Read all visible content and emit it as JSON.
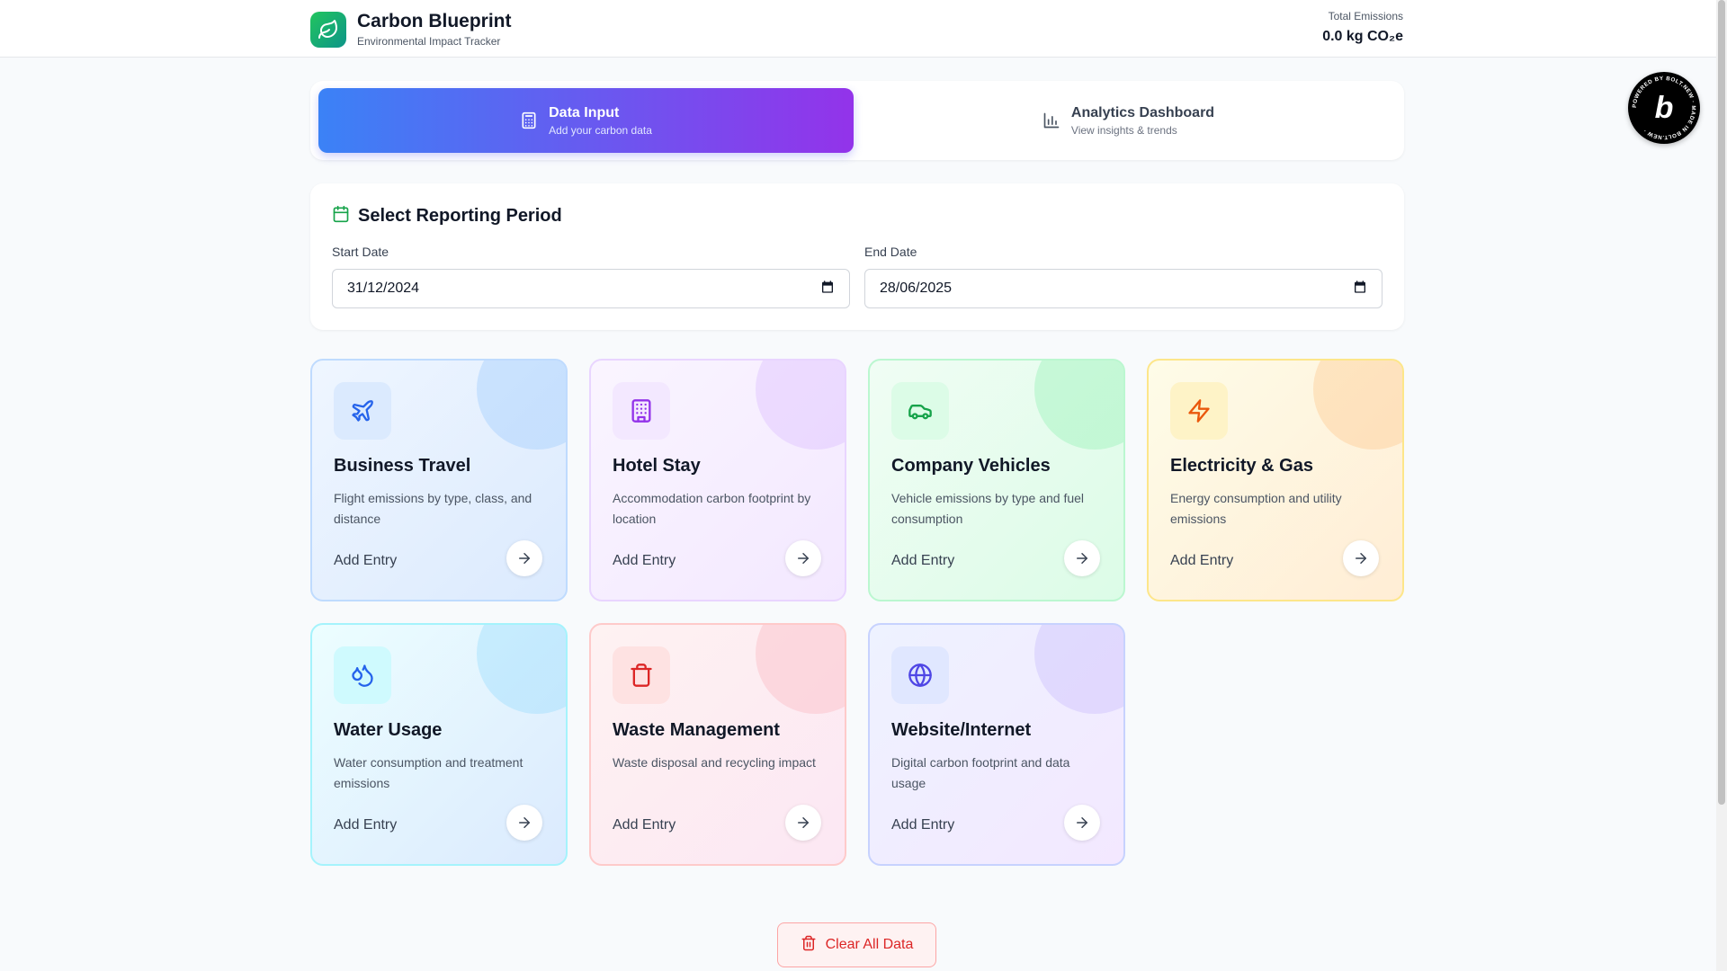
{
  "header": {
    "title": "Carbon Blueprint",
    "subtitle": "Environmental Impact Tracker",
    "total_label": "Total Emissions",
    "total_value": "0.0 kg CO₂e"
  },
  "tabs": [
    {
      "title": "Data Input",
      "subtitle": "Add your carbon data",
      "icon": "calculator-icon",
      "active": true
    },
    {
      "title": "Analytics Dashboard",
      "subtitle": "View insights & trends",
      "icon": "bar-chart-icon",
      "active": false
    }
  ],
  "period": {
    "title": "Select Reporting Period",
    "start_label": "Start Date",
    "start_value": "31/12/2024",
    "end_label": "End Date",
    "end_value": "28/06/2025"
  },
  "cards": [
    {
      "title": "Business Travel",
      "description": "Flight emissions by type, class, and distance",
      "action": "Add Entry",
      "icon": "plane-icon"
    },
    {
      "title": "Hotel Stay",
      "description": "Accommodation carbon footprint by location",
      "action": "Add Entry",
      "icon": "building-icon"
    },
    {
      "title": "Company Vehicles",
      "description": "Vehicle emissions by type and fuel consumption",
      "action": "Add Entry",
      "icon": "car-icon"
    },
    {
      "title": "Electricity & Gas",
      "description": "Energy consumption and utility emissions",
      "action": "Add Entry",
      "icon": "zap-icon"
    },
    {
      "title": "Water Usage",
      "description": "Water consumption and treatment emissions",
      "action": "Add Entry",
      "icon": "droplets-icon"
    },
    {
      "title": "Waste Management",
      "description": "Waste disposal and recycling impact",
      "action": "Add Entry",
      "icon": "trash-icon"
    },
    {
      "title": "Website/Internet",
      "description": "Digital carbon footprint and data usage",
      "action": "Add Entry",
      "icon": "globe-icon"
    }
  ],
  "clear_button": "Clear All Data",
  "badge": {
    "letter": "b",
    "ring_text": "POWERED BY BOLT.NEW · MADE IN BOLT.NEW ·"
  },
  "colors": {
    "accent_start": "#3b82f6",
    "accent_end": "#9333ea",
    "travel": "#2563eb",
    "hotel": "#9333ea",
    "vehicles": "#16a34a",
    "energy": "#ea580c",
    "water": "#0891b2",
    "waste": "#dc2626",
    "web": "#4f46e5"
  }
}
